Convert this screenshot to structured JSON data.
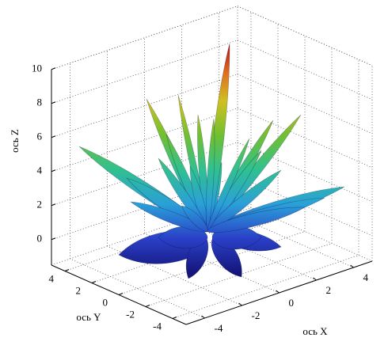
{
  "chart_data": {
    "type": "surface3d",
    "xlabel": "ось X",
    "ylabel": "ось Y",
    "zlabel": "ось Z",
    "xlim": [
      -5,
      5
    ],
    "ylim": [
      -5,
      5
    ],
    "zlim": [
      -1.5,
      10
    ],
    "xticks": [
      -4,
      -2,
      0,
      2,
      4
    ],
    "yticks": [
      -4,
      -2,
      0,
      2,
      4
    ],
    "zticks": [
      0,
      2,
      4,
      6,
      8,
      10
    ],
    "grid": true
  }
}
